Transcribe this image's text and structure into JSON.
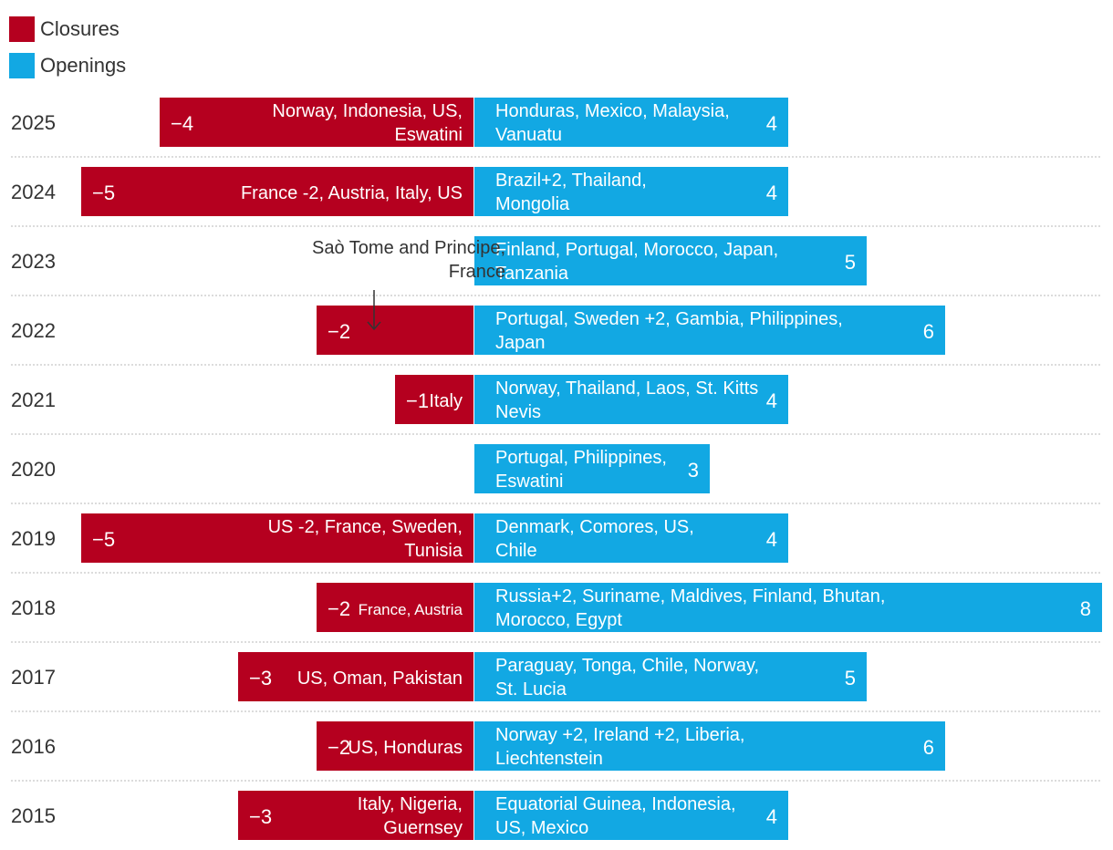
{
  "chart_data": {
    "type": "bar",
    "orientation": "horizontal-diverging",
    "legend": [
      {
        "name": "Closures",
        "color": "#b5001f"
      },
      {
        "name": "Openings",
        "color": "#12a8e3"
      }
    ],
    "legend_position": "top-left",
    "grid": "dotted horizontal separators",
    "rows": [
      {
        "year": "2025",
        "closures": -4,
        "closure_label": "−4",
        "closure_countries": [
          "Norway, Indonesia, US,",
          "Eswatini"
        ],
        "openings": 4,
        "opening_label": "4",
        "opening_countries": [
          "Honduras, Mexico, Malaysia,",
          "Vanuatu"
        ]
      },
      {
        "year": "2024",
        "closures": -5,
        "closure_label": "−5",
        "closure_countries": [
          "France -2, Austria, Italy, US"
        ],
        "openings": 4,
        "opening_label": "4",
        "opening_countries": [
          "Brazil+2, Thailand,",
          "Mongolia"
        ]
      },
      {
        "year": "2023",
        "closures": 0,
        "closure_label": "",
        "closure_countries": [],
        "openings": 5,
        "opening_label": "5",
        "opening_countries": [
          "Finland, Portugal, Morocco, Japan,",
          "Tanzania"
        ]
      },
      {
        "year": "2022",
        "closures": -2,
        "closure_label": "−2",
        "closure_countries": [],
        "openings": 6,
        "opening_label": "6",
        "opening_countries": [
          "Portugal, Sweden +2, Gambia, Philippines,",
          "Japan"
        ]
      },
      {
        "year": "2021",
        "closures": -1,
        "closure_label": "−1",
        "closure_countries": [
          "Italy"
        ],
        "openings": 4,
        "opening_label": "4",
        "opening_countries": [
          "Norway, Thailand, Laos, St. Kitts",
          "Nevis"
        ]
      },
      {
        "year": "2020",
        "closures": 0,
        "closure_label": "",
        "closure_countries": [],
        "openings": 3,
        "opening_label": "3",
        "opening_countries": [
          "Portugal, Philippines,",
          "Eswatini"
        ]
      },
      {
        "year": "2019",
        "closures": -5,
        "closure_label": "−5",
        "closure_countries": [
          "US -2, France, Sweden,",
          "Tunisia"
        ],
        "openings": 4,
        "opening_label": "4",
        "opening_countries": [
          "Denmark, Comores, US,",
          "Chile"
        ]
      },
      {
        "year": "2018",
        "closures": -2,
        "closure_label": "−2",
        "closure_countries": [
          "France, Austria"
        ],
        "openings": 8,
        "opening_label": "8",
        "opening_countries": [
          "Russia+2, Suriname, Maldives, Finland, Bhutan,",
          "Morocco, Egypt"
        ]
      },
      {
        "year": "2017",
        "closures": -3,
        "closure_label": "−3",
        "closure_countries": [
          "US, Oman, Pakistan"
        ],
        "openings": 5,
        "opening_label": "5",
        "opening_countries": [
          "Paraguay, Tonga, Chile, Norway,",
          "St. Lucia"
        ]
      },
      {
        "year": "2016",
        "closures": -2,
        "closure_label": "−2",
        "closure_countries": [
          "US, Honduras"
        ],
        "openings": 6,
        "opening_label": "6",
        "opening_countries": [
          "Norway +2, Ireland +2, Liberia,",
          "Liechtenstein"
        ]
      },
      {
        "year": "2015",
        "closures": -3,
        "closure_label": "−3",
        "closure_countries": [
          "Italy, Nigeria,",
          "Guernsey"
        ],
        "openings": 4,
        "opening_label": "4",
        "opening_countries": [
          "Equatorial Guinea, Indonesia,",
          "US, Mexico"
        ]
      }
    ],
    "annotation": {
      "year": "2022",
      "lines": [
        "Saò Tome and Principe,",
        "France"
      ]
    },
    "xlim": [
      -6,
      8
    ]
  }
}
